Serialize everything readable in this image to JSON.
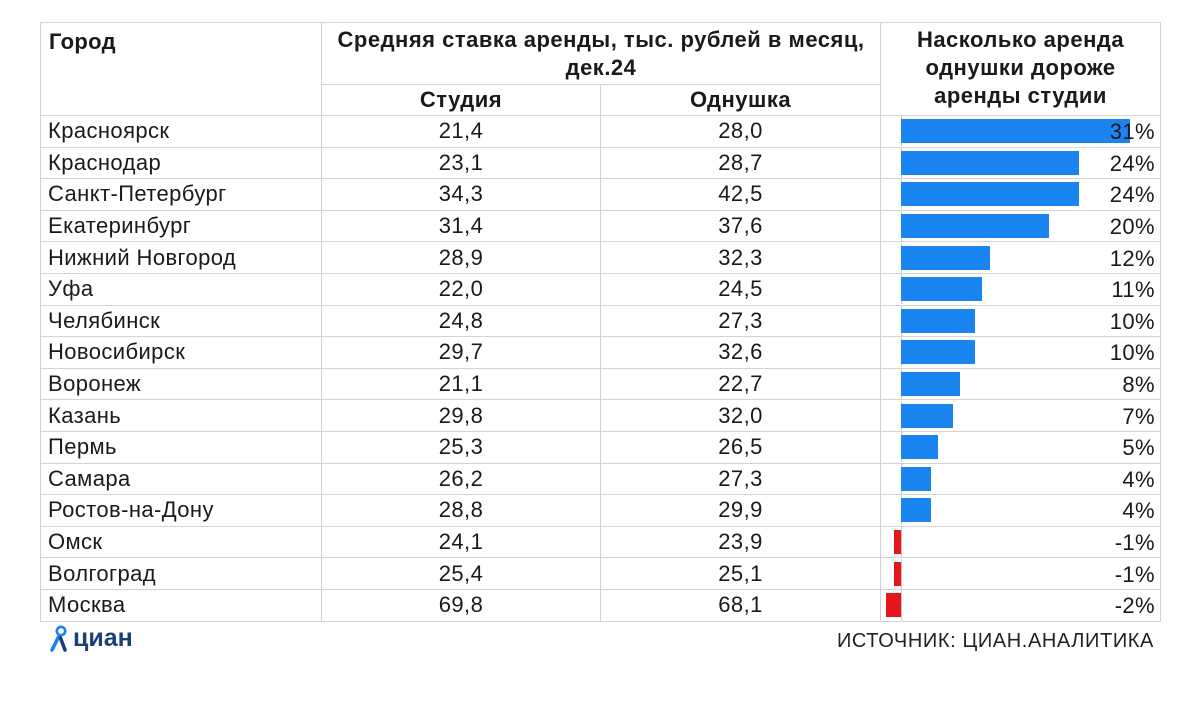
{
  "header": {
    "city": "Город",
    "avg_rate": "Средняя ставка аренды, тыс. рублей в месяц, дек.24",
    "studio": "Студия",
    "one_room": "Однушка",
    "diff": "Насколько аренда однушки дороже аренды студии"
  },
  "chart_data": {
    "type": "table",
    "columns": [
      "Город",
      "Студия",
      "Однушка",
      "Насколько аренда однушки дороже аренды студии"
    ],
    "rows": [
      {
        "city": "Красноярск",
        "studio": "21,4",
        "one_room": "28,0",
        "diff": "31%",
        "pct": 31
      },
      {
        "city": "Краснодар",
        "studio": "23,1",
        "one_room": "28,7",
        "diff": "24%",
        "pct": 24
      },
      {
        "city": "Санкт-Петербург",
        "studio": "34,3",
        "one_room": "42,5",
        "diff": "24%",
        "pct": 24
      },
      {
        "city": "Екатеринбург",
        "studio": "31,4",
        "one_room": "37,6",
        "diff": "20%",
        "pct": 20
      },
      {
        "city": "Нижний Новгород",
        "studio": "28,9",
        "one_room": "32,3",
        "diff": "12%",
        "pct": 12
      },
      {
        "city": "Уфа",
        "studio": "22,0",
        "one_room": "24,5",
        "diff": "11%",
        "pct": 11
      },
      {
        "city": "Челябинск",
        "studio": "24,8",
        "one_room": "27,3",
        "diff": "10%",
        "pct": 10
      },
      {
        "city": "Новосибирск",
        "studio": "29,7",
        "one_room": "32,6",
        "diff": "10%",
        "pct": 10
      },
      {
        "city": "Воронеж",
        "studio": "21,1",
        "one_room": "22,7",
        "diff": "8%",
        "pct": 8
      },
      {
        "city": "Казань",
        "studio": "29,8",
        "one_room": "32,0",
        "diff": "7%",
        "pct": 7
      },
      {
        "city": "Пермь",
        "studio": "25,3",
        "one_room": "26,5",
        "diff": "5%",
        "pct": 5
      },
      {
        "city": "Самара",
        "studio": "26,2",
        "one_room": "27,3",
        "diff": "4%",
        "pct": 4
      },
      {
        "city": "Ростов-на-Дону",
        "studio": "28,8",
        "one_room": "29,9",
        "diff": "4%",
        "pct": 4
      },
      {
        "city": "Омск",
        "studio": "24,1",
        "one_room": "23,9",
        "diff": "-1%",
        "pct": -1
      },
      {
        "city": "Волгоград",
        "studio": "25,4",
        "one_room": "25,1",
        "diff": "-1%",
        "pct": -1
      },
      {
        "city": "Москва",
        "studio": "69,8",
        "one_room": "68,1",
        "diff": "-2%",
        "pct": -2
      }
    ],
    "colors": {
      "positive": "#1a85f0",
      "negative": "#e8141b"
    }
  },
  "footer": {
    "logo": "циан",
    "source": "ИСТОЧНИК: ЦИАН.АНАЛИТИКА"
  }
}
